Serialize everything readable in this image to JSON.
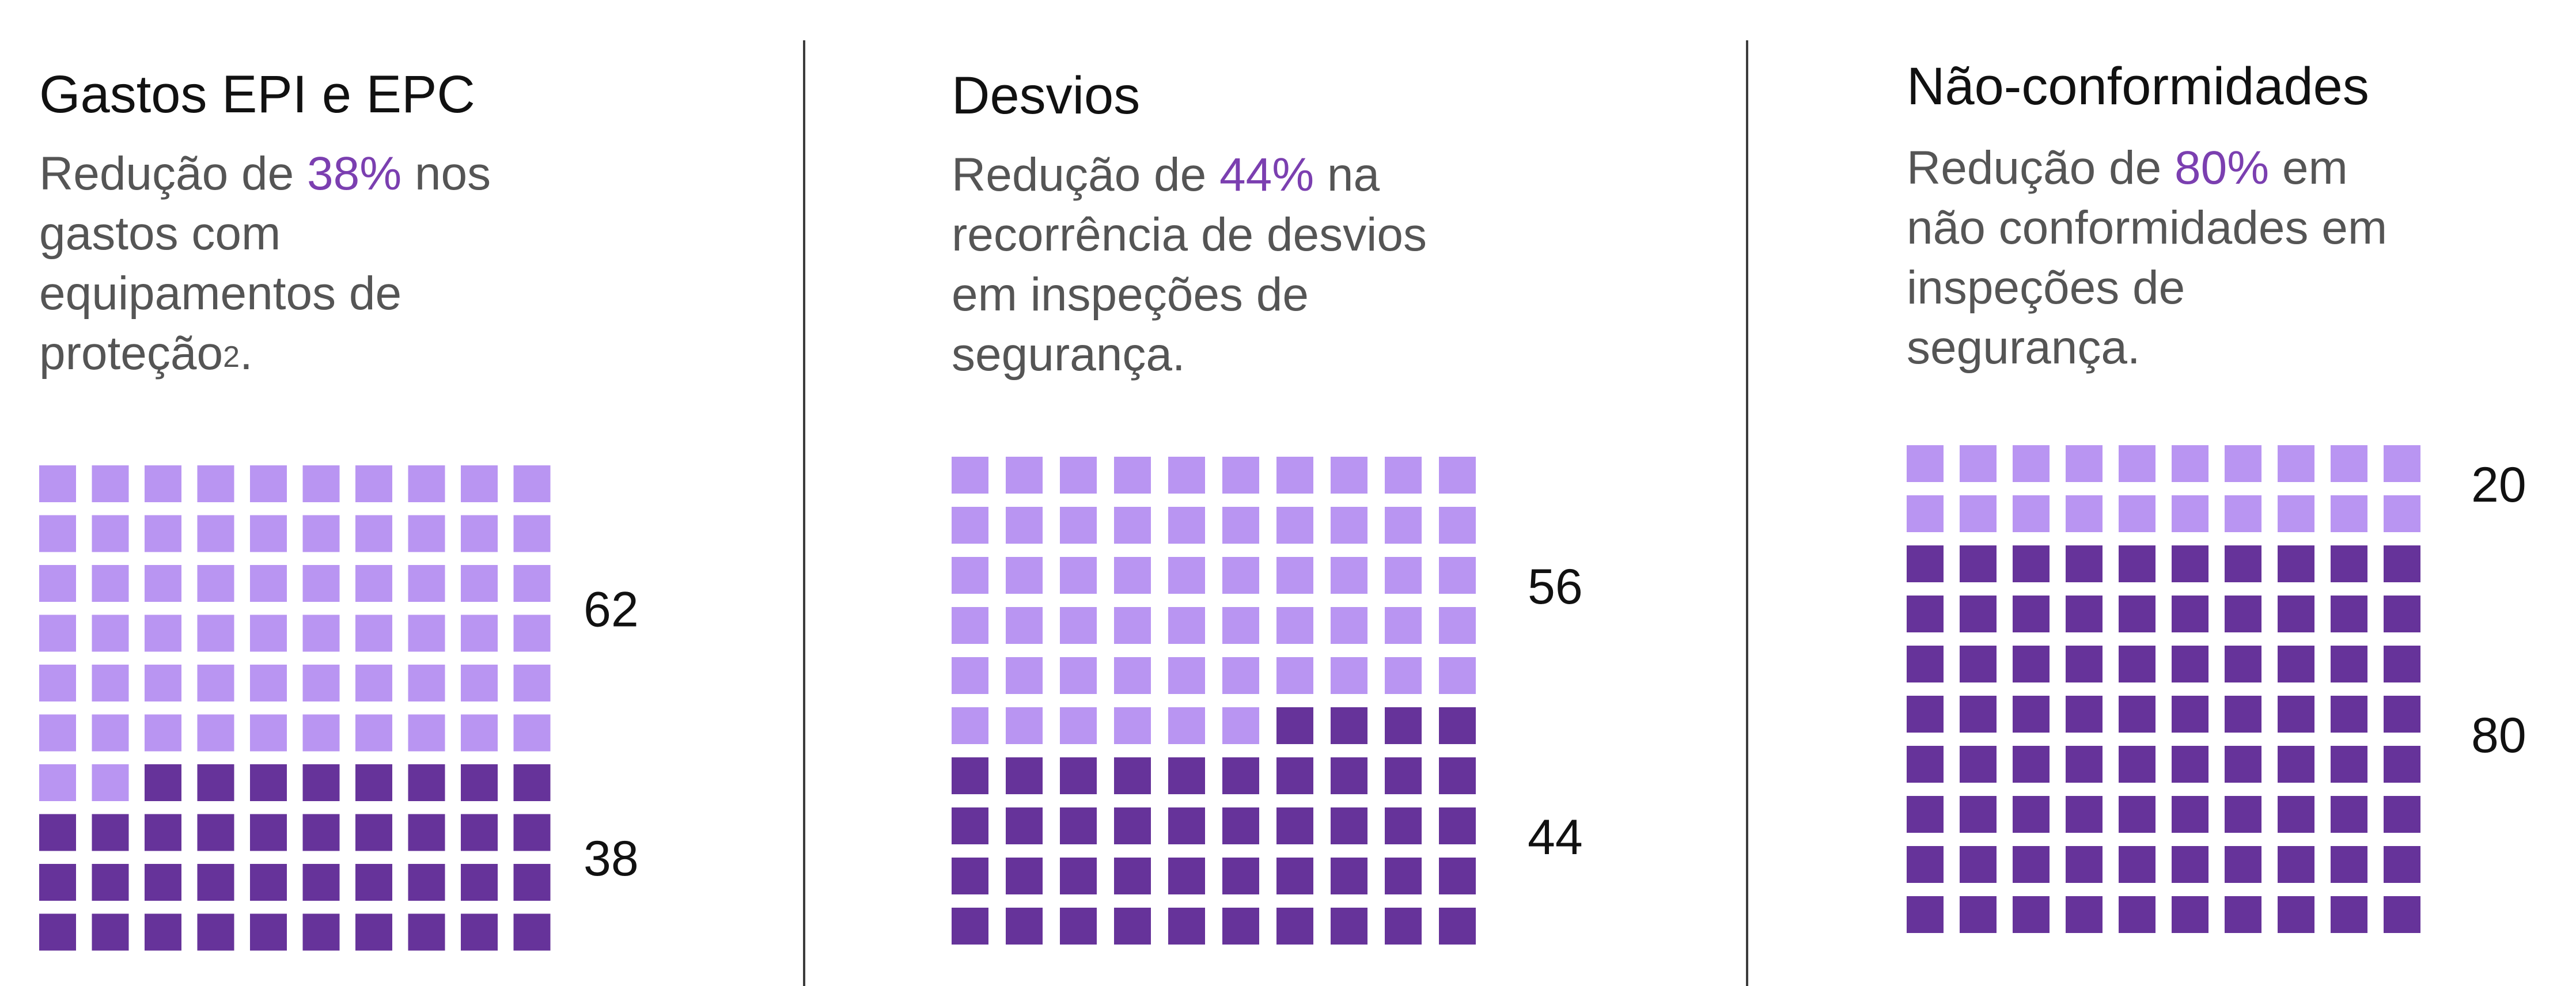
{
  "colors": {
    "light": "#b995f2",
    "dark": "#66339a",
    "highlight": "#7b3fb0",
    "text": "#111111",
    "divider": "#3c3c3c"
  },
  "panels": [
    {
      "title": "Gastos EPI e EPC",
      "desc": {
        "line1_pre": "Redução de ",
        "highlight": "38%",
        "line1_post": " nos",
        "line2": "gastos com",
        "line3": "equipamentos de",
        "line4_text": "proteção",
        "line4_sup": "2",
        "line4_end": "."
      }
    },
    {
      "title": "Desvios",
      "desc": {
        "line1_pre": "Redução de ",
        "highlight": "44%",
        "line1_post": " na",
        "line2": "recorrência de desvios",
        "line3": "em inspeções de",
        "line4": "segurança."
      }
    },
    {
      "title": "Não-conformidades",
      "desc": {
        "line1_pre": "Redução de ",
        "highlight": "80%",
        "line1_post": " em",
        "line2": "não conformidades em",
        "line3": "inspeções de",
        "line4": "segurança."
      }
    }
  ],
  "chart_data": [
    {
      "type": "waffle",
      "grid": [
        10,
        10
      ],
      "fill_order": "bottom-right-first",
      "categories": [
        "62",
        "38"
      ],
      "values": [
        62,
        38
      ],
      "colors": [
        "#b995f2",
        "#66339a"
      ]
    },
    {
      "type": "waffle",
      "grid": [
        10,
        10
      ],
      "fill_order": "bottom-right-first",
      "categories": [
        "56",
        "44"
      ],
      "values": [
        56,
        44
      ],
      "colors": [
        "#b995f2",
        "#66339a"
      ]
    },
    {
      "type": "waffle",
      "grid": [
        10,
        10
      ],
      "fill_order": "bottom-right-first",
      "categories": [
        "20",
        "80"
      ],
      "values": [
        20,
        80
      ],
      "colors": [
        "#b995f2",
        "#66339a"
      ]
    }
  ]
}
